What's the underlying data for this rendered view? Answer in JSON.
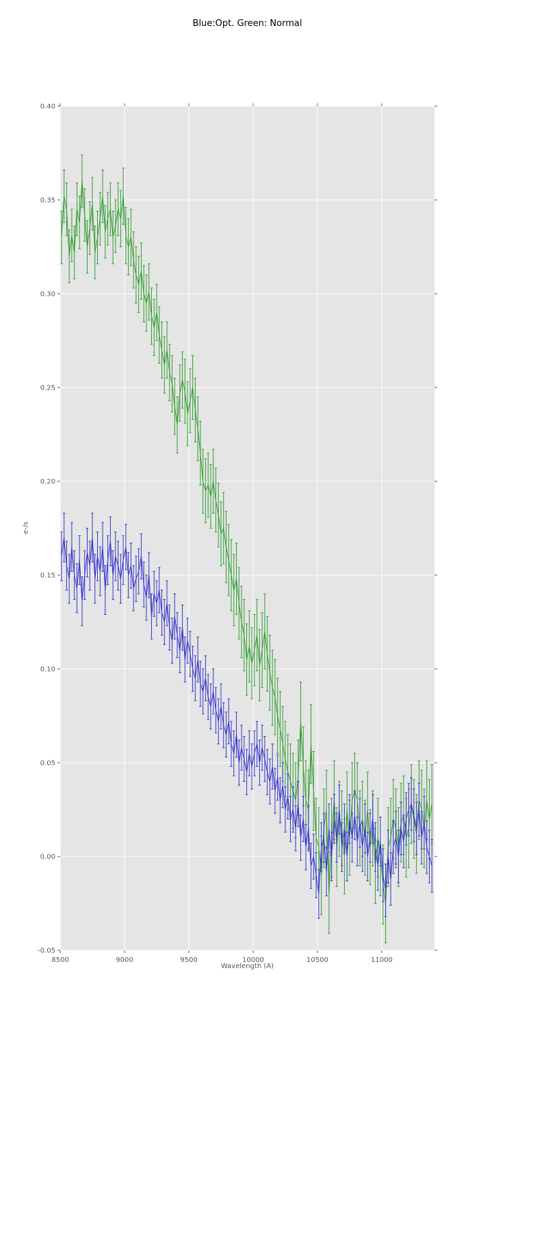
{
  "chart_data": {
    "type": "line",
    "title": "Blue:Opt. Green: Normal",
    "xlabel": "Wavelength (A)",
    "ylabel": "e-/s",
    "xlim": [
      8500,
      11410
    ],
    "ylim": [
      -0.05,
      0.4
    ],
    "xticks": [
      8500,
      9000,
      9500,
      10000,
      10500,
      11000
    ],
    "xticklabels": [
      "8500",
      "9000",
      "9500",
      "10000",
      "10500",
      "11000"
    ],
    "yticks": [
      -0.05,
      0.0,
      0.05,
      0.1,
      0.15,
      0.2,
      0.25,
      0.3,
      0.35,
      0.4
    ],
    "yticklabels": [
      "-0.05",
      "0.00",
      "0.05",
      "0.10",
      "0.15",
      "0.20",
      "0.25",
      "0.30",
      "0.35",
      "0.40"
    ],
    "grid": true,
    "legend": "none",
    "plot_bg": "#e5e5e5",
    "grid_color": "#ffffff",
    "tick_color": "#555555",
    "x_start": 8510,
    "x_step": 20,
    "series": [
      {
        "name": "normal",
        "label": "Green: Normal",
        "color": "#2d9b2d",
        "style": "errorbar-line",
        "values": [
          0.33,
          0.352,
          0.345,
          0.32,
          0.331,
          0.322,
          0.345,
          0.338,
          0.36,
          0.342,
          0.325,
          0.335,
          0.348,
          0.322,
          0.33,
          0.34,
          0.352,
          0.333,
          0.34,
          0.345,
          0.33,
          0.336,
          0.345,
          0.34,
          0.352,
          0.331,
          0.325,
          0.33,
          0.318,
          0.31,
          0.305,
          0.312,
          0.3,
          0.295,
          0.301,
          0.288,
          0.282,
          0.29,
          0.278,
          0.27,
          0.262,
          0.27,
          0.258,
          0.252,
          0.24,
          0.23,
          0.247,
          0.254,
          0.248,
          0.236,
          0.243,
          0.25,
          0.238,
          0.228,
          0.215,
          0.2,
          0.195,
          0.198,
          0.192,
          0.2,
          0.19,
          0.182,
          0.172,
          0.175,
          0.165,
          0.158,
          0.15,
          0.142,
          0.148,
          0.135,
          0.125,
          0.118,
          0.105,
          0.112,
          0.103,
          0.11,
          0.118,
          0.102,
          0.11,
          0.12,
          0.108,
          0.098,
          0.09,
          0.085,
          0.075,
          0.068,
          0.06,
          0.052,
          0.045,
          0.04,
          0.035,
          0.03,
          0.042,
          0.072,
          0.048,
          0.03,
          0.025,
          0.06,
          0.035,
          0.01,
          0.005,
          -0.01,
          0.015,
          0.025,
          -0.02,
          0.01,
          0.03,
          0.005,
          0.02,
          0.015,
          0.0,
          0.025,
          0.01,
          0.03,
          0.035,
          0.03,
          0.015,
          0.02,
          0.01,
          0.025,
          0.005,
          0.015,
          -0.005,
          0.01,
          0.0,
          -0.015,
          -0.025,
          0.005,
          0.01,
          0.02,
          0.015,
          0.005,
          0.018,
          0.022,
          0.01,
          0.015,
          0.028,
          0.02,
          0.012,
          0.03,
          0.025,
          0.015,
          0.03,
          0.02,
          0.028
        ],
        "yerr_runs": [
          [
            23,
            0.014
          ],
          [
            25,
            0.015
          ],
          [
            15,
            0.017
          ],
          [
            15,
            0.019
          ],
          [
            15,
            0.02
          ],
          [
            15,
            0.021
          ],
          [
            15,
            0.02
          ],
          [
            22,
            0.021
          ]
        ]
      },
      {
        "name": "opt",
        "label": "Blue: Opt.",
        "color": "#3333cc",
        "style": "errorbar-line",
        "values": [
          0.16,
          0.17,
          0.155,
          0.148,
          0.165,
          0.15,
          0.143,
          0.158,
          0.136,
          0.15,
          0.162,
          0.155,
          0.17,
          0.148,
          0.16,
          0.152,
          0.165,
          0.142,
          0.158,
          0.168,
          0.15,
          0.16,
          0.155,
          0.148,
          0.158,
          0.165,
          0.15,
          0.155,
          0.143,
          0.148,
          0.152,
          0.16,
          0.145,
          0.138,
          0.15,
          0.128,
          0.14,
          0.135,
          0.142,
          0.13,
          0.125,
          0.135,
          0.122,
          0.115,
          0.128,
          0.118,
          0.11,
          0.122,
          0.105,
          0.115,
          0.108,
          0.1,
          0.095,
          0.105,
          0.092,
          0.088,
          0.095,
          0.085,
          0.08,
          0.088,
          0.078,
          0.072,
          0.08,
          0.07,
          0.065,
          0.072,
          0.06,
          0.055,
          0.065,
          0.05,
          0.058,
          0.052,
          0.045,
          0.055,
          0.048,
          0.055,
          0.06,
          0.05,
          0.058,
          0.052,
          0.045,
          0.04,
          0.048,
          0.035,
          0.042,
          0.03,
          0.038,
          0.025,
          0.032,
          0.02,
          0.025,
          0.015,
          0.028,
          0.01,
          0.02,
          0.005,
          0.015,
          -0.005,
          0.0,
          -0.01,
          -0.02,
          0.005,
          0.01,
          -0.008,
          0.015,
          0.0,
          0.02,
          0.01,
          0.025,
          0.005,
          0.015,
          0.0,
          0.02,
          0.01,
          0.022,
          0.008,
          0.018,
          0.005,
          0.015,
          0.0,
          0.01,
          0.02,
          0.005,
          -0.005,
          0.008,
          -0.01,
          -0.018,
          0.0,
          -0.012,
          0.005,
          0.01,
          0.0,
          0.015,
          0.008,
          0.02,
          0.025,
          0.028,
          0.022,
          0.015,
          0.025,
          0.01,
          0.018,
          0.005,
          0.0,
          -0.005
        ],
        "yerr_runs": [
          [
            25,
            0.013
          ],
          [
            75,
            0.012
          ],
          [
            25,
            0.013
          ],
          [
            20,
            0.014
          ]
        ]
      }
    ]
  }
}
